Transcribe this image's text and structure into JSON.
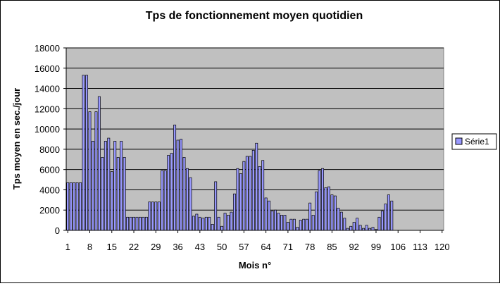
{
  "chart_data": {
    "type": "bar",
    "title": "Tps de fonctionnement moyen quotidien",
    "xlabel": "Mois n°",
    "ylabel": "Tps moyen en sec./jour",
    "ylim": [
      0,
      18000
    ],
    "yticks": [
      0,
      2000,
      4000,
      6000,
      8000,
      10000,
      12000,
      14000,
      16000,
      18000
    ],
    "xticks": [
      1,
      8,
      15,
      22,
      29,
      36,
      43,
      50,
      57,
      64,
      71,
      78,
      85,
      92,
      99,
      106,
      113,
      120
    ],
    "x_range": [
      1,
      120
    ],
    "grid": true,
    "legend_position": "right",
    "plot_background": "#c0c0c0",
    "bar_color": "#9999ff",
    "series": [
      {
        "name": "Série1",
        "x": [
          1,
          2,
          3,
          4,
          5,
          6,
          7,
          8,
          9,
          10,
          11,
          12,
          13,
          14,
          15,
          16,
          17,
          18,
          19,
          20,
          21,
          22,
          23,
          24,
          25,
          26,
          27,
          28,
          29,
          30,
          31,
          32,
          33,
          34,
          35,
          36,
          37,
          38,
          39,
          40,
          41,
          42,
          43,
          44,
          45,
          46,
          47,
          48,
          49,
          50,
          51,
          52,
          53,
          54,
          55,
          56,
          57,
          58,
          59,
          60,
          61,
          62,
          63,
          64,
          65,
          66,
          67,
          68,
          69,
          70,
          71,
          72,
          73,
          74,
          75,
          76,
          77,
          78,
          79,
          80,
          81,
          82,
          83,
          84,
          85,
          86,
          87,
          88,
          89,
          90,
          91,
          92,
          93,
          94,
          95,
          96,
          97,
          98,
          99,
          100,
          101,
          102,
          103,
          104,
          105,
          106,
          107,
          108,
          109,
          110,
          111,
          112,
          113,
          114,
          115,
          116,
          117,
          118,
          119,
          120
        ],
        "values": [
          4700,
          4700,
          4700,
          4700,
          4700,
          15300,
          15300,
          11700,
          8800,
          11700,
          13200,
          7200,
          8800,
          9100,
          5800,
          8800,
          7200,
          8800,
          7200,
          1300,
          1300,
          1300,
          1300,
          1300,
          1300,
          1300,
          2800,
          2800,
          2800,
          2800,
          5900,
          5900,
          7400,
          7600,
          10400,
          8900,
          9000,
          7200,
          6100,
          5200,
          1400,
          1600,
          1300,
          1200,
          1300,
          1300,
          600,
          4800,
          1300,
          400,
          1700,
          1500,
          1800,
          3600,
          6100,
          5600,
          6800,
          7300,
          7300,
          7900,
          8600,
          6300,
          6900,
          3200,
          2900,
          1900,
          2000,
          1700,
          1500,
          1500,
          800,
          1100,
          1100,
          300,
          1000,
          1100,
          1100,
          2700,
          1500,
          3800,
          5900,
          6100,
          4200,
          4300,
          3500,
          3400,
          2200,
          1800,
          1200,
          200,
          400,
          800,
          1200,
          500,
          200,
          500,
          200,
          300,
          100,
          1300,
          1900,
          2600,
          3500,
          2900,
          0,
          0,
          0,
          0,
          0,
          0,
          0,
          0,
          0,
          0,
          0,
          0,
          0,
          0,
          0,
          0
        ]
      }
    ]
  }
}
